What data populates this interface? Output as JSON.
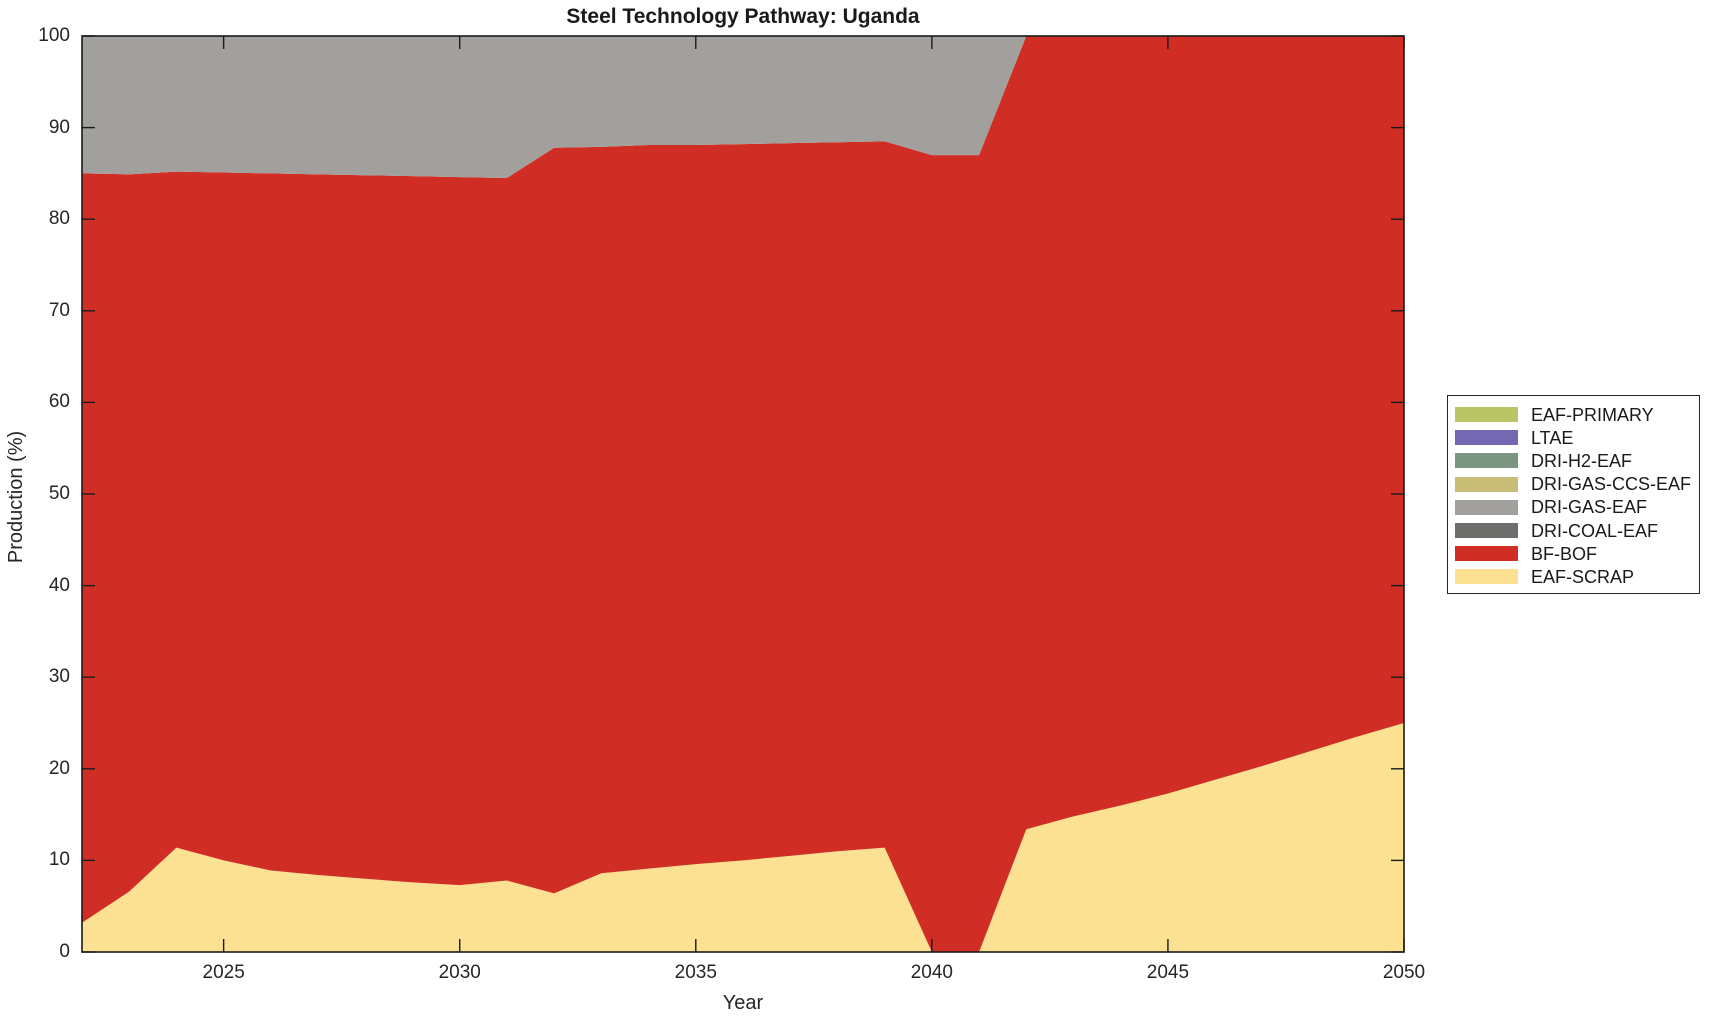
{
  "title": "Steel Technology Pathway: Uganda",
  "axes": {
    "xlabel": "Year",
    "ylabel": "Production (%)",
    "x_ticks": [
      2025,
      2030,
      2035,
      2040,
      2045,
      2050
    ],
    "y_ticks": [
      0,
      10,
      20,
      30,
      40,
      50,
      60,
      70,
      80,
      90,
      100
    ]
  },
  "legend": {
    "position": "outside-right",
    "entries": [
      {
        "label": "EAF-PRIMARY",
        "color": "#B9C566"
      },
      {
        "label": "LTAE",
        "color": "#7568B2"
      },
      {
        "label": "DRI-H2-EAF",
        "color": "#7A9580"
      },
      {
        "label": "DRI-GAS-CCS-EAF",
        "color": "#C9BC76"
      },
      {
        "label": "DRI-GAS-EAF",
        "color": "#A2A09C"
      },
      {
        "label": "DRI-COAL-EAF",
        "color": "#6D6D6B"
      },
      {
        "label": "BF-BOF",
        "color": "#D02E25"
      },
      {
        "label": "EAF-SCRAP",
        "color": "#FBE191"
      }
    ]
  },
  "chart_data": {
    "type": "area",
    "stacked": true,
    "title": "Steel Technology Pathway: Uganda",
    "xlabel": "Year",
    "ylabel": "Production (%)",
    "xlim": [
      2022,
      2050
    ],
    "ylim": [
      0,
      100
    ],
    "grid": false,
    "legend_position": "outside-right",
    "x": [
      2022,
      2023,
      2024,
      2025,
      2026,
      2027,
      2028,
      2029,
      2030,
      2031,
      2032,
      2033,
      2034,
      2035,
      2036,
      2037,
      2038,
      2039,
      2040,
      2041,
      2042,
      2043,
      2044,
      2045,
      2046,
      2047,
      2048,
      2049,
      2050
    ],
    "series": [
      {
        "name": "EAF-SCRAP",
        "color": "#FBE191",
        "values": [
          3.2,
          6.6,
          11.4,
          10.0,
          8.9,
          8.4,
          8.0,
          7.6,
          7.3,
          7.8,
          6.4,
          8.6,
          9.1,
          9.6,
          10.0,
          10.5,
          11.0,
          11.4,
          0,
          0,
          13.4,
          14.8,
          16.0,
          17.3,
          18.8,
          20.3,
          21.9,
          23.5,
          25.0
        ]
      },
      {
        "name": "BF-BOF",
        "color": "#D02E25",
        "values": [
          81.8,
          78.3,
          73.8,
          75.1,
          76.1,
          76.5,
          76.8,
          77.1,
          77.3,
          76.7,
          81.4,
          79.3,
          79.0,
          78.5,
          78.2,
          77.8,
          77.4,
          77.1,
          87.0,
          87.0,
          86.6,
          85.2,
          84.0,
          82.7,
          81.2,
          79.7,
          78.1,
          76.5,
          75.0
        ]
      },
      {
        "name": "DRI-COAL-EAF",
        "color": "#6D6D6B",
        "values": [
          0,
          0,
          0,
          0,
          0,
          0,
          0,
          0,
          0,
          0,
          0,
          0,
          0,
          0,
          0,
          0,
          0,
          0,
          0,
          0,
          0,
          0,
          0,
          0,
          0,
          0,
          0,
          0,
          0
        ]
      },
      {
        "name": "DRI-GAS-EAF",
        "color": "#A2A09C",
        "values": [
          15.0,
          15.1,
          14.8,
          14.9,
          15.0,
          15.1,
          15.2,
          15.3,
          15.4,
          15.5,
          12.2,
          12.1,
          11.9,
          11.9,
          11.8,
          11.7,
          11.6,
          11.5,
          13.0,
          13.0,
          0,
          0,
          0,
          0,
          0,
          0,
          0,
          0,
          0
        ]
      },
      {
        "name": "DRI-GAS-CCS-EAF",
        "color": "#C9BC76",
        "values": [
          0,
          0,
          0,
          0,
          0,
          0,
          0,
          0,
          0,
          0,
          0,
          0,
          0,
          0,
          0,
          0,
          0,
          0,
          0,
          0,
          0,
          0,
          0,
          0,
          0,
          0,
          0,
          0,
          0
        ]
      },
      {
        "name": "DRI-H2-EAF",
        "color": "#7A9580",
        "values": [
          0,
          0,
          0,
          0,
          0,
          0,
          0,
          0,
          0,
          0,
          0,
          0,
          0,
          0,
          0,
          0,
          0,
          0,
          0,
          0,
          0,
          0,
          0,
          0,
          0,
          0,
          0,
          0,
          0
        ]
      },
      {
        "name": "LTAE",
        "color": "#7568B2",
        "values": [
          0,
          0,
          0,
          0,
          0,
          0,
          0,
          0,
          0,
          0,
          0,
          0,
          0,
          0,
          0,
          0,
          0,
          0,
          0,
          0,
          0,
          0,
          0,
          0,
          0,
          0,
          0,
          0,
          0
        ]
      },
      {
        "name": "EAF-PRIMARY",
        "color": "#B9C566",
        "values": [
          0,
          0,
          0,
          0,
          0,
          0,
          0,
          0,
          0,
          0,
          0,
          0,
          0,
          0,
          0,
          0,
          0,
          0,
          0,
          0,
          0,
          0,
          0,
          0,
          0,
          0,
          0,
          0,
          0
        ]
      }
    ]
  }
}
